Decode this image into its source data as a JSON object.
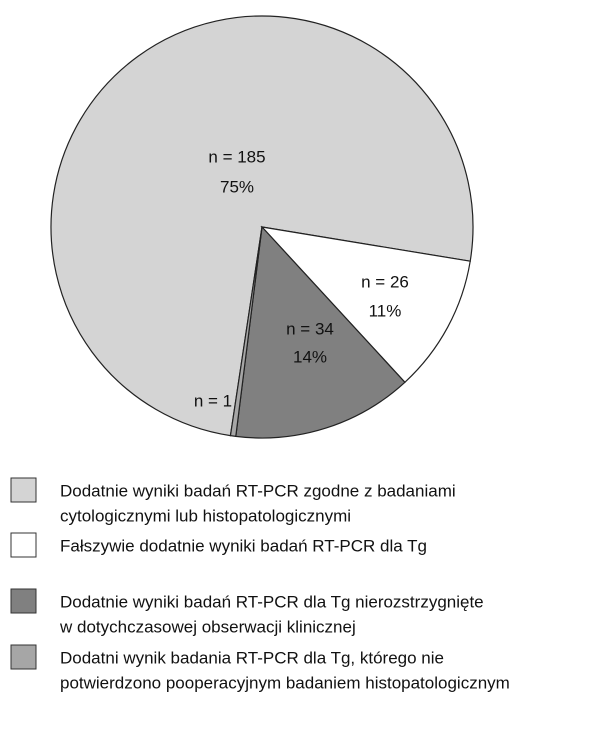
{
  "chart_data": {
    "type": "pie",
    "values": [
      185,
      26,
      34,
      1
    ],
    "value_labels": [
      "n = 185",
      "n = 26",
      "n = 34",
      "n = 1"
    ],
    "percent_labels": [
      "75%",
      "11%",
      "14%",
      null
    ],
    "series": [
      {
        "name": [
          "Dodatnie wyniki badań RT-PCR zgodne z badaniami",
          "cytologicznymi lub histopatologicznymi"
        ],
        "color": "#d4d4d4"
      },
      {
        "name": [
          "Fałszywie dodatnie wyniki badań RT-PCR dla Tg"
        ],
        "color": "#ffffff"
      },
      {
        "name": [
          "Dodatnie wyniki badań RT-PCR dla Tg nierozstrzygnięte",
          "w dotychczasowej obserwacji klinicznej"
        ],
        "color": "#808080"
      },
      {
        "name": [
          "Dodatni wynik badania RT-PCR dla Tg, którego nie",
          "potwierdzono pooperacyjnym badaniem histopatologicznym"
        ],
        "color": "#a6a6a6"
      }
    ]
  }
}
